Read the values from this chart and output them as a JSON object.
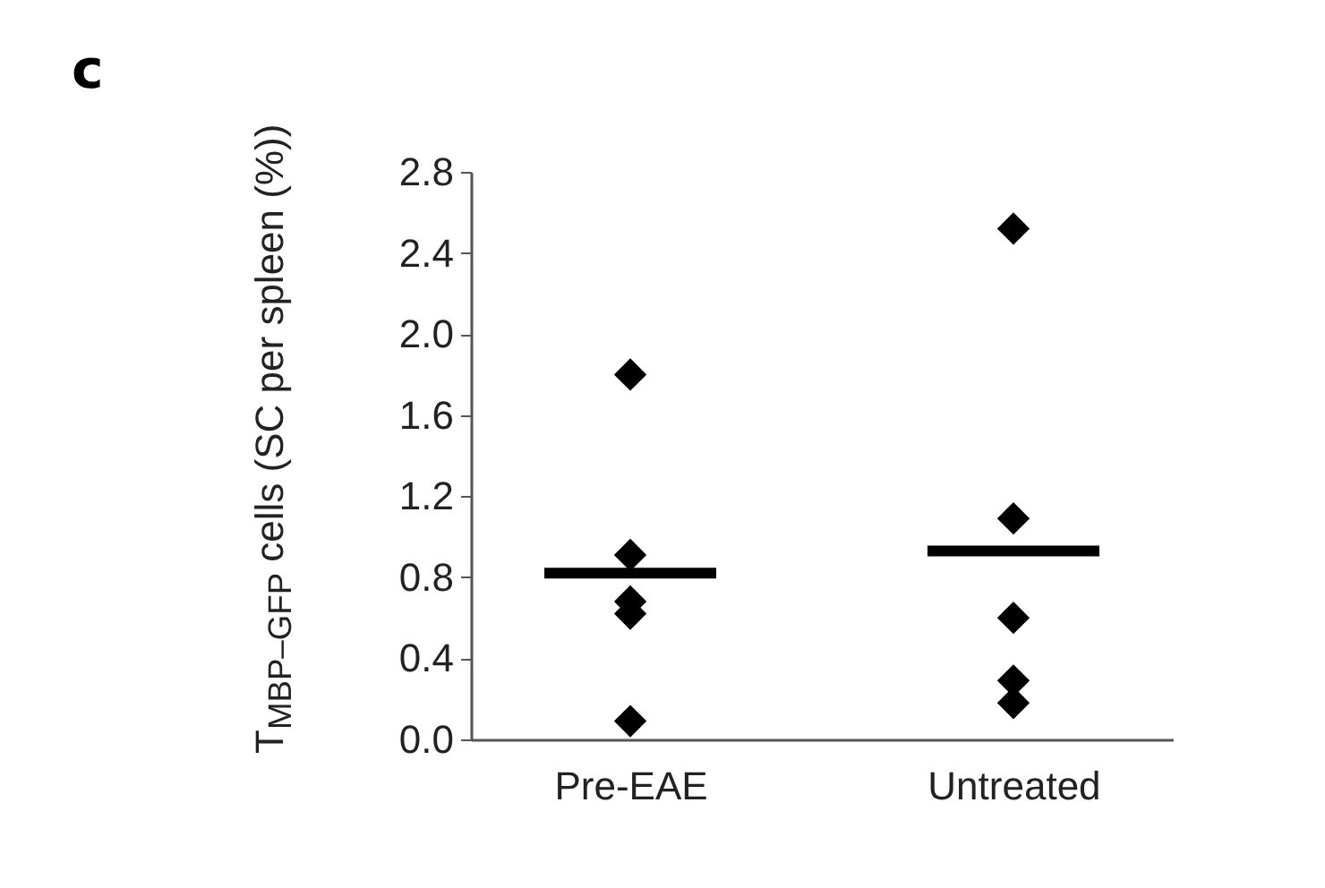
{
  "chart_data": {
    "type": "scatter",
    "ylabel": "T$_{MBP–GFP}$ cells (SC per spleen (%))",
    "annotations": [
      "c"
    ],
    "categories": [
      "Pre-EAE",
      "Untreated"
    ],
    "ylim": [
      0,
      2.8
    ],
    "yticks": [
      {
        "value": 0,
        "label": "0.0"
      },
      {
        "value": 0.4,
        "label": "0.4"
      },
      {
        "value": 0.8,
        "label": "0.8"
      },
      {
        "value": 1.2,
        "label": "1.2"
      },
      {
        "value": 1.6,
        "label": "1.6"
      },
      {
        "value": 2.0,
        "label": "2.0"
      },
      {
        "value": 2.4,
        "label": "2.4"
      },
      {
        "value": 2.8,
        "label": "2.8"
      }
    ],
    "marker": "diamond",
    "series": [
      {
        "color": "#000000",
        "x": [
          "Pre-EAE",
          "Pre-EAE",
          "Pre-EAE",
          "Pre-EAE",
          "Pre-EAE",
          "Untreated",
          "Untreated",
          "Untreated",
          "Untreated",
          "Untreated"
        ],
        "values": [
          1.8,
          0.91,
          0.68,
          0.62,
          0.09,
          2.52,
          1.09,
          0.6,
          0.29,
          0.18
        ]
      },
      {
        "type": "box",
        "color": "#000000",
        "boxes": [
          {
            "low": 0.82,
            "q1": 0.82,
            "median": 0.82,
            "q3": 0.82,
            "high": 0.82
          },
          {
            "low": 0.93,
            "q1": 0.93,
            "median": 0.93,
            "q3": 0.93,
            "high": 0.93
          }
        ]
      }
    ]
  }
}
